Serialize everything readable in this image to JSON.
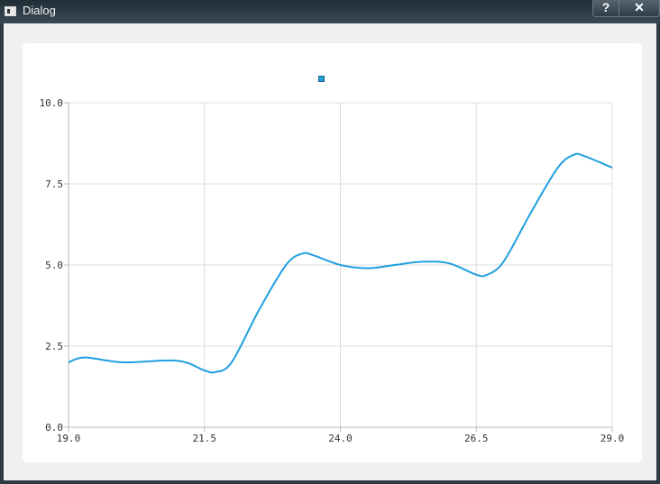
{
  "window": {
    "title": "Dialog",
    "help_label": "?",
    "close_label": "✕"
  },
  "chart_data": {
    "type": "line",
    "title": "",
    "xlabel": "",
    "ylabel": "",
    "xlim": [
      19.0,
      29.0
    ],
    "ylim": [
      0.0,
      10.0
    ],
    "x_ticks": [
      "19.0",
      "21.5",
      "24.0",
      "26.5",
      "29.0"
    ],
    "y_ticks": [
      "0.0",
      "2.5",
      "5.0",
      "7.5",
      "10.0"
    ],
    "grid": true,
    "legend": "top-center",
    "series": [
      {
        "color": "#209fdf",
        "x": [
          19.0,
          19.3,
          20.0,
          21.0,
          21.5,
          21.7,
          22.0,
          22.5,
          23.0,
          23.3,
          23.5,
          24.0,
          24.5,
          25.0,
          25.5,
          26.0,
          26.5,
          26.7,
          27.0,
          27.5,
          28.0,
          28.3,
          28.5,
          29.0
        ],
        "y": [
          2.0,
          2.15,
          2.0,
          2.05,
          1.75,
          1.7,
          2.0,
          3.6,
          5.0,
          5.35,
          5.3,
          5.0,
          4.9,
          5.0,
          5.1,
          5.05,
          4.7,
          4.7,
          5.1,
          6.6,
          8.0,
          8.4,
          8.35,
          8.0
        ],
        "color_hex": "#209fdf"
      }
    ]
  },
  "colors": {
    "line": "#209fdf",
    "grid": "#dddddd",
    "axis": "#bbbbbb",
    "legend_marker": "#209fdf"
  }
}
